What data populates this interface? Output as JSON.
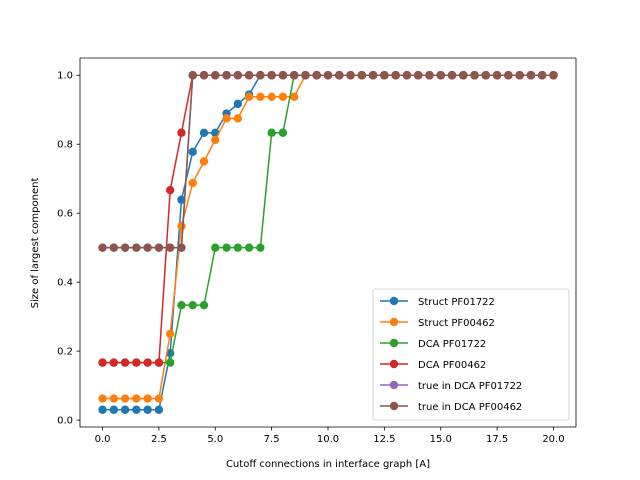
{
  "chart_data": {
    "type": "line",
    "title": "",
    "xlabel": "Cutoff connections in interface graph [A]",
    "ylabel": "Size of largest component",
    "xlim": [
      -1.0,
      21.0
    ],
    "ylim": [
      -0.02,
      1.05
    ],
    "xticks": [
      0.0,
      2.5,
      5.0,
      7.5,
      10.0,
      12.5,
      15.0,
      17.5,
      20.0
    ],
    "xtick_labels": [
      "0.0",
      "2.5",
      "5.0",
      "7.5",
      "10.0",
      "12.5",
      "15.0",
      "17.5",
      "20.0"
    ],
    "yticks": [
      0.0,
      0.2,
      0.4,
      0.6,
      0.8,
      1.0
    ],
    "ytick_labels": [
      "0.0",
      "0.2",
      "0.4",
      "0.6",
      "0.8",
      "1.0"
    ],
    "legend_position": "bottom-right",
    "x": [
      0.0,
      0.5,
      1.0,
      1.5,
      2.0,
      2.5,
      3.0,
      3.5,
      4.0,
      4.5,
      5.0,
      5.5,
      6.0,
      6.5,
      7.0,
      7.5,
      8.0,
      8.5,
      9.0,
      9.5,
      10.0,
      10.5,
      11.0,
      11.5,
      12.0,
      12.5,
      13.0,
      13.5,
      14.0,
      14.5,
      15.0,
      15.5,
      16.0,
      16.5,
      17.0,
      17.5,
      18.0,
      18.5,
      19.0,
      19.5,
      20.0
    ],
    "series": [
      {
        "name": "Struct PF01722",
        "color": "#1f77b4",
        "values": [
          0.03,
          0.03,
          0.03,
          0.03,
          0.03,
          0.03,
          0.194,
          0.639,
          0.778,
          0.833,
          0.833,
          0.889,
          0.917,
          0.944,
          1.0,
          1.0,
          1.0,
          1.0,
          1.0,
          1.0,
          1.0,
          1.0,
          1.0,
          1.0,
          1.0,
          1.0,
          1.0,
          1.0,
          1.0,
          1.0,
          1.0,
          1.0,
          1.0,
          1.0,
          1.0,
          1.0,
          1.0,
          1.0,
          1.0,
          1.0,
          1.0
        ]
      },
      {
        "name": "Struct PF00462",
        "color": "#ff7f0e",
        "values": [
          0.0625,
          0.0625,
          0.0625,
          0.0625,
          0.0625,
          0.0625,
          0.25,
          0.5625,
          0.6875,
          0.75,
          0.8125,
          0.875,
          0.875,
          0.9375,
          0.9375,
          0.9375,
          0.9375,
          0.9375,
          1.0,
          1.0,
          1.0,
          1.0,
          1.0,
          1.0,
          1.0,
          1.0,
          1.0,
          1.0,
          1.0,
          1.0,
          1.0,
          1.0,
          1.0,
          1.0,
          1.0,
          1.0,
          1.0,
          1.0,
          1.0,
          1.0,
          1.0
        ]
      },
      {
        "name": "DCA PF01722",
        "color": "#2ca02c",
        "values": [
          0.1667,
          0.1667,
          0.1667,
          0.1667,
          0.1667,
          0.1667,
          0.1667,
          0.3333,
          0.3333,
          0.3333,
          0.5,
          0.5,
          0.5,
          0.5,
          0.5,
          0.8333,
          0.8333,
          1.0,
          1.0,
          1.0,
          1.0,
          1.0,
          1.0,
          1.0,
          1.0,
          1.0,
          1.0,
          1.0,
          1.0,
          1.0,
          1.0,
          1.0,
          1.0,
          1.0,
          1.0,
          1.0,
          1.0,
          1.0,
          1.0,
          1.0,
          1.0
        ]
      },
      {
        "name": "DCA PF00462",
        "color": "#d62728",
        "values": [
          0.1667,
          0.1667,
          0.1667,
          0.1667,
          0.1667,
          0.1667,
          0.6667,
          0.8333,
          1.0,
          1.0,
          1.0,
          1.0,
          1.0,
          1.0,
          1.0,
          1.0,
          1.0,
          1.0,
          1.0,
          1.0,
          1.0,
          1.0,
          1.0,
          1.0,
          1.0,
          1.0,
          1.0,
          1.0,
          1.0,
          1.0,
          1.0,
          1.0,
          1.0,
          1.0,
          1.0,
          1.0,
          1.0,
          1.0,
          1.0,
          1.0,
          1.0
        ]
      },
      {
        "name": "true in DCA PF01722",
        "color": "#9467bd",
        "values": [
          0.5,
          0.5,
          0.5,
          0.5,
          0.5,
          0.5,
          0.5,
          0.5,
          1.0,
          1.0,
          1.0,
          1.0,
          1.0,
          1.0,
          1.0,
          1.0,
          1.0,
          1.0,
          1.0,
          1.0,
          1.0,
          1.0,
          1.0,
          1.0,
          1.0,
          1.0,
          1.0,
          1.0,
          1.0,
          1.0,
          1.0,
          1.0,
          1.0,
          1.0,
          1.0,
          1.0,
          1.0,
          1.0,
          1.0,
          1.0,
          1.0
        ]
      },
      {
        "name": "true in DCA PF00462",
        "color": "#8c564b",
        "values": [
          0.5,
          0.5,
          0.5,
          0.5,
          0.5,
          0.5,
          0.5,
          0.5,
          1.0,
          1.0,
          1.0,
          1.0,
          1.0,
          1.0,
          1.0,
          1.0,
          1.0,
          1.0,
          1.0,
          1.0,
          1.0,
          1.0,
          1.0,
          1.0,
          1.0,
          1.0,
          1.0,
          1.0,
          1.0,
          1.0,
          1.0,
          1.0,
          1.0,
          1.0,
          1.0,
          1.0,
          1.0,
          1.0,
          1.0,
          1.0,
          1.0
        ]
      }
    ]
  }
}
